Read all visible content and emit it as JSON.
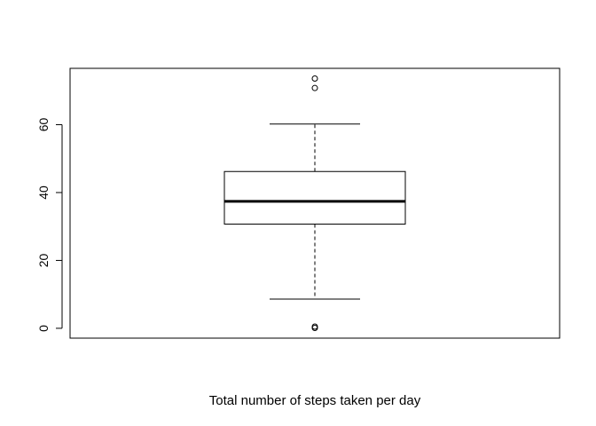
{
  "chart_data": {
    "type": "boxplot",
    "title": "",
    "xlabel": "Total number of steps taken per day",
    "ylabel": "",
    "ylim": [
      -2.9,
      76.6
    ],
    "yticks": [
      0,
      20,
      40,
      60
    ],
    "y_tick_labels": [
      "0",
      "20",
      "40",
      "60"
    ],
    "grid": false,
    "legend": "none",
    "box": {
      "whisker_low": 8.6,
      "q1": 30.7,
      "median": 37.4,
      "q3": 46.2,
      "whisker_high": 60.2
    },
    "outliers": [
      0.1,
      0.5,
      70.8,
      73.6
    ],
    "colors": {
      "stroke": "#000000",
      "background": "#ffffff"
    }
  }
}
